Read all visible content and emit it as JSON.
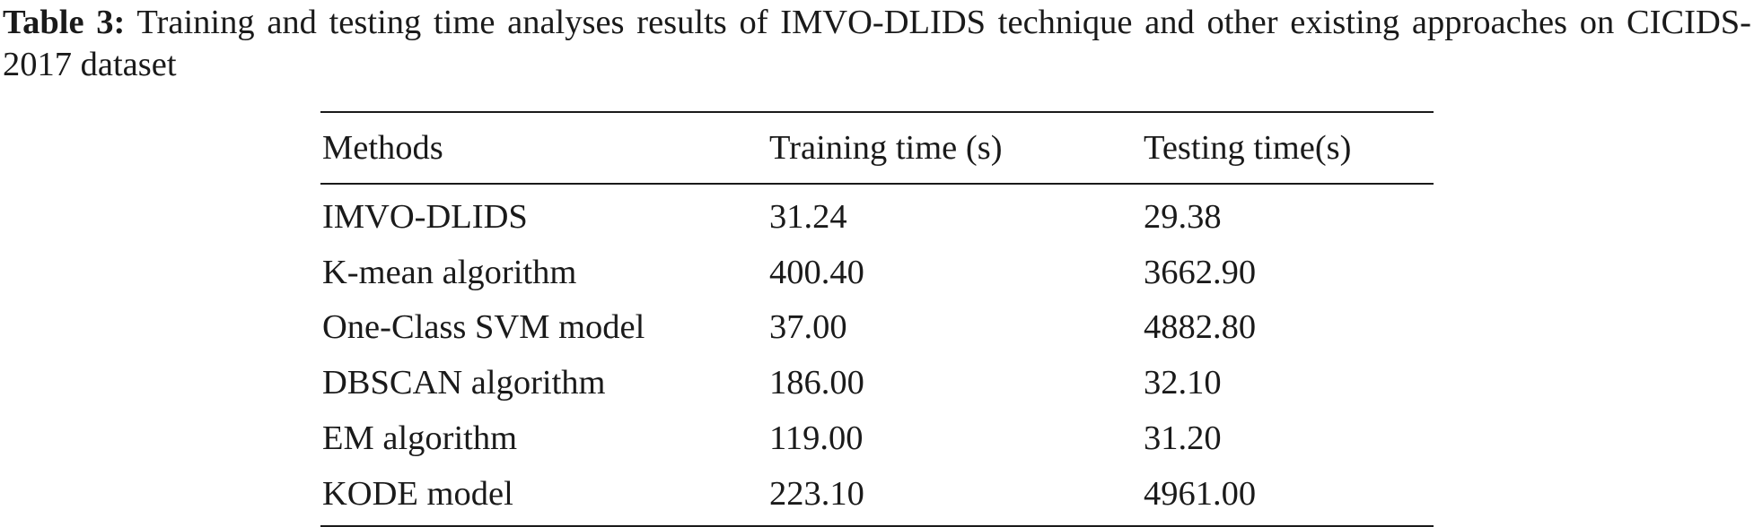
{
  "caption": {
    "label": "Table 3:",
    "text": "Training and testing time analyses results of IMVO-DLIDS technique and other existing approaches on CICIDS-2017 dataset"
  },
  "table": {
    "headers": [
      "Methods",
      "Training time (s)",
      "Testing time(s)"
    ],
    "rows": [
      [
        "IMVO-DLIDS",
        "31.24",
        "29.38"
      ],
      [
        "K-mean algorithm",
        "400.40",
        "3662.90"
      ],
      [
        "One-Class SVM model",
        "37.00",
        "4882.80"
      ],
      [
        "DBSCAN algorithm",
        "186.00",
        "32.10"
      ],
      [
        "EM algorithm",
        "119.00",
        "31.20"
      ],
      [
        "KODE model",
        "223.10",
        "4961.00"
      ]
    ]
  }
}
